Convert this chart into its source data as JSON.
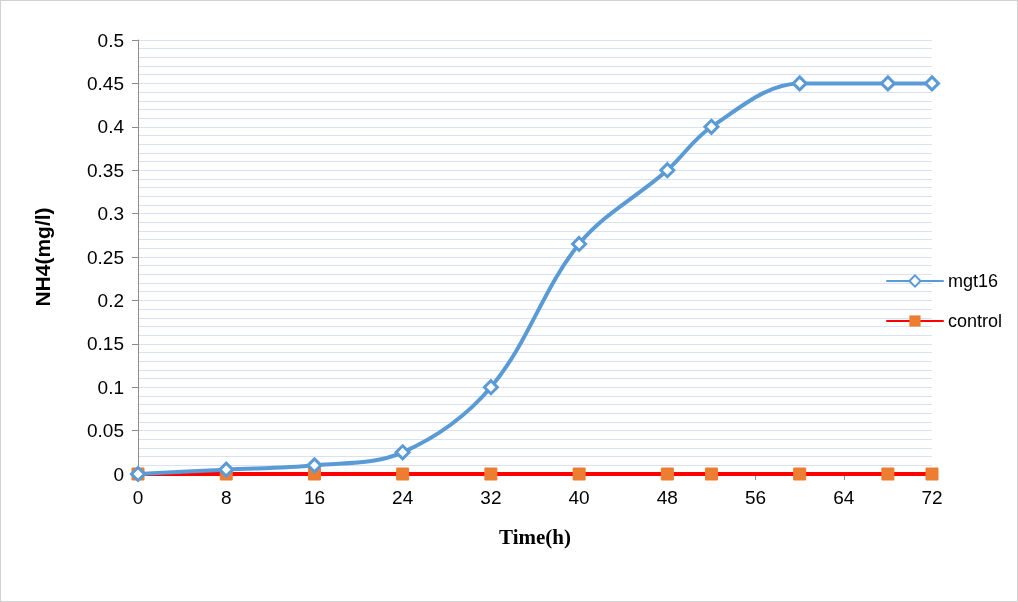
{
  "chart_data": {
    "type": "line",
    "xlabel": "Time(h)",
    "ylabel": "NH4(mg/l)",
    "x": [
      0,
      8,
      16,
      24,
      32,
      40,
      48,
      52,
      60,
      68,
      72
    ],
    "series": [
      {
        "name": "mgt16",
        "color": "#5b9bd5",
        "marker": "diamond",
        "values": [
          0,
          0.005,
          0.01,
          0.025,
          0.1,
          0.265,
          0.35,
          0.4,
          0.45,
          0.45,
          0.45
        ]
      },
      {
        "name": "control",
        "color": "#ff0000",
        "marker": "square",
        "colors": [
          "#ed7d31",
          "#ed7d31",
          "#ed7d31",
          "#ed7d31",
          "#ed7d31",
          "#ed7d31",
          "#ed7d31",
          "#ed7d31",
          "#ed7d31",
          "#ed7d31",
          "#ed7d31"
        ],
        "values": [
          0,
          0,
          0,
          0,
          0,
          0,
          0,
          0,
          0,
          0,
          0
        ]
      }
    ],
    "xlim": [
      0,
      72
    ],
    "xticks": [
      0,
      8,
      16,
      24,
      32,
      40,
      48,
      56,
      64,
      72
    ],
    "ylim": [
      0,
      0.5
    ],
    "yticks": [
      0,
      0.05,
      0.1,
      0.15,
      0.2,
      0.25,
      0.3,
      0.35,
      0.4,
      0.45,
      0.5
    ],
    "grid": "y",
    "legend": "right",
    "line_style": "solid"
  }
}
